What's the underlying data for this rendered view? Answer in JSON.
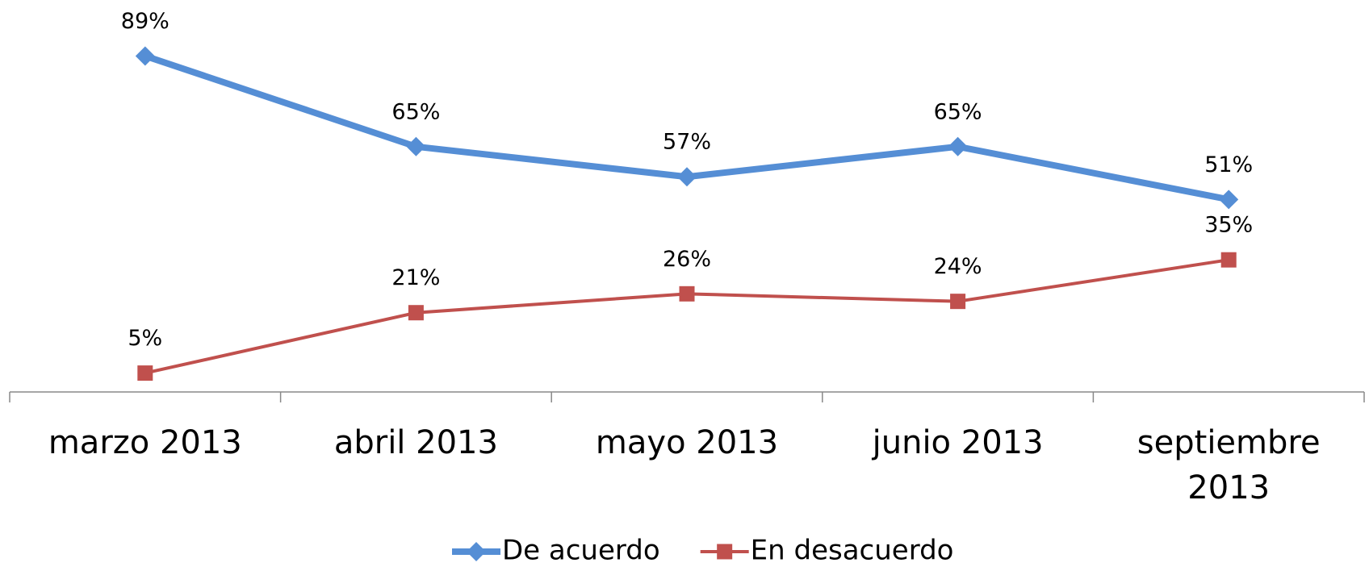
{
  "chart_data": {
    "type": "line",
    "categories": [
      "marzo 2013",
      "abril 2013",
      "mayo 2013",
      "junio 2013",
      "septiembre 2013"
    ],
    "series": [
      {
        "name": "De acuerdo",
        "color": "#558ed5",
        "marker": "diamond",
        "values": [
          89,
          65,
          57,
          65,
          51
        ],
        "value_labels": [
          "89%",
          "65%",
          "57%",
          "65%",
          "51%"
        ]
      },
      {
        "name": "En desacuerdo",
        "color": "#c0504d",
        "marker": "square",
        "values": [
          5,
          21,
          26,
          24,
          35
        ],
        "value_labels": [
          "5%",
          "21%",
          "26%",
          "24%",
          "35%"
        ]
      }
    ],
    "ylim": [
      0,
      100
    ],
    "grid": false,
    "legend": "bottom"
  }
}
